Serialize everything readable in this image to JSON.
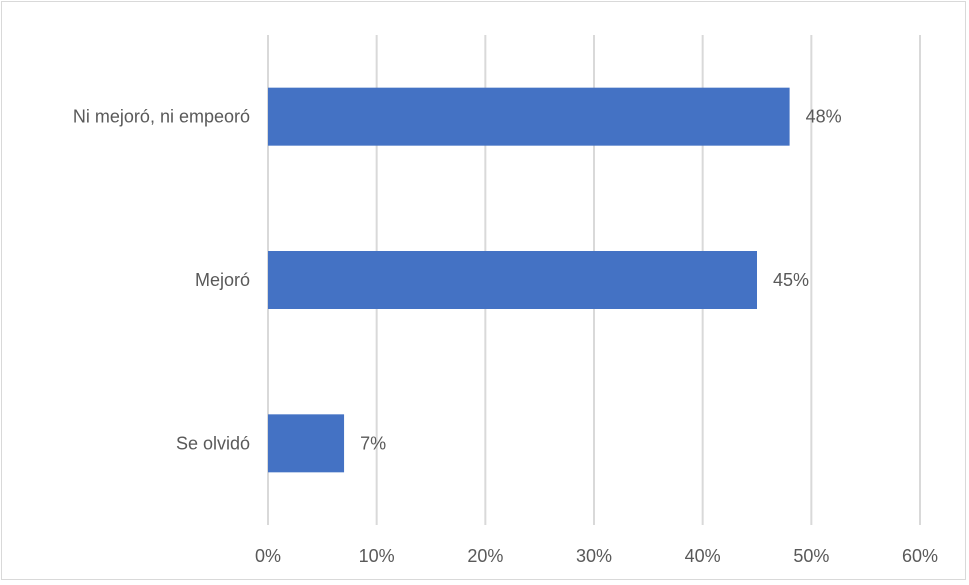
{
  "chart_data": {
    "type": "bar",
    "orientation": "horizontal",
    "categories": [
      "Ni mejoró, ni empeoró",
      "Mejoró",
      "Se olvidó"
    ],
    "values": [
      0.48,
      0.45,
      0.07
    ],
    "data_labels": [
      "48%",
      "45%",
      "7%"
    ],
    "x_ticks": [
      0,
      0.1,
      0.2,
      0.3,
      0.4,
      0.5,
      0.6
    ],
    "x_tick_labels": [
      "0%",
      "10%",
      "20%",
      "30%",
      "40%",
      "50%",
      "60%"
    ],
    "xlim": [
      0,
      0.6
    ],
    "title": "",
    "xlabel": "",
    "ylabel": "",
    "grid": "vertical",
    "legend": "none",
    "bar_color": "#4472c4",
    "grid_color": "#d9d9d9",
    "text_color": "#595959"
  }
}
